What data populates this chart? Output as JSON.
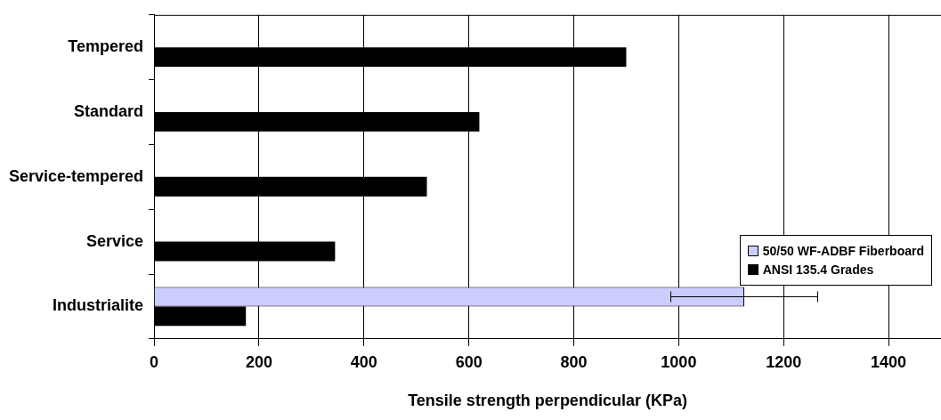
{
  "chart_data": {
    "type": "bar",
    "orientation": "horizontal",
    "xlabel": "Tensile strength perpendicular (KPa)",
    "categories": [
      "Tempered",
      "Standard",
      "Service-tempered",
      "Service",
      "Industrialite"
    ],
    "series": [
      {
        "name": "50/50 WF-ADBF Fiberboard",
        "color": "#ccccff",
        "values": [
          null,
          null,
          null,
          null,
          1125
        ],
        "errors": [
          null,
          null,
          null,
          null,
          [
            985,
            1265
          ]
        ]
      },
      {
        "name": "ANSI 135.4 Grades",
        "color": "#000000",
        "values": [
          900,
          620,
          520,
          345,
          175
        ]
      }
    ],
    "xlim": [
      0,
      1500
    ],
    "xticks": [
      0,
      200,
      400,
      600,
      800,
      1000,
      1200,
      1400
    ],
    "grid": "x",
    "legend": "bottom right"
  }
}
